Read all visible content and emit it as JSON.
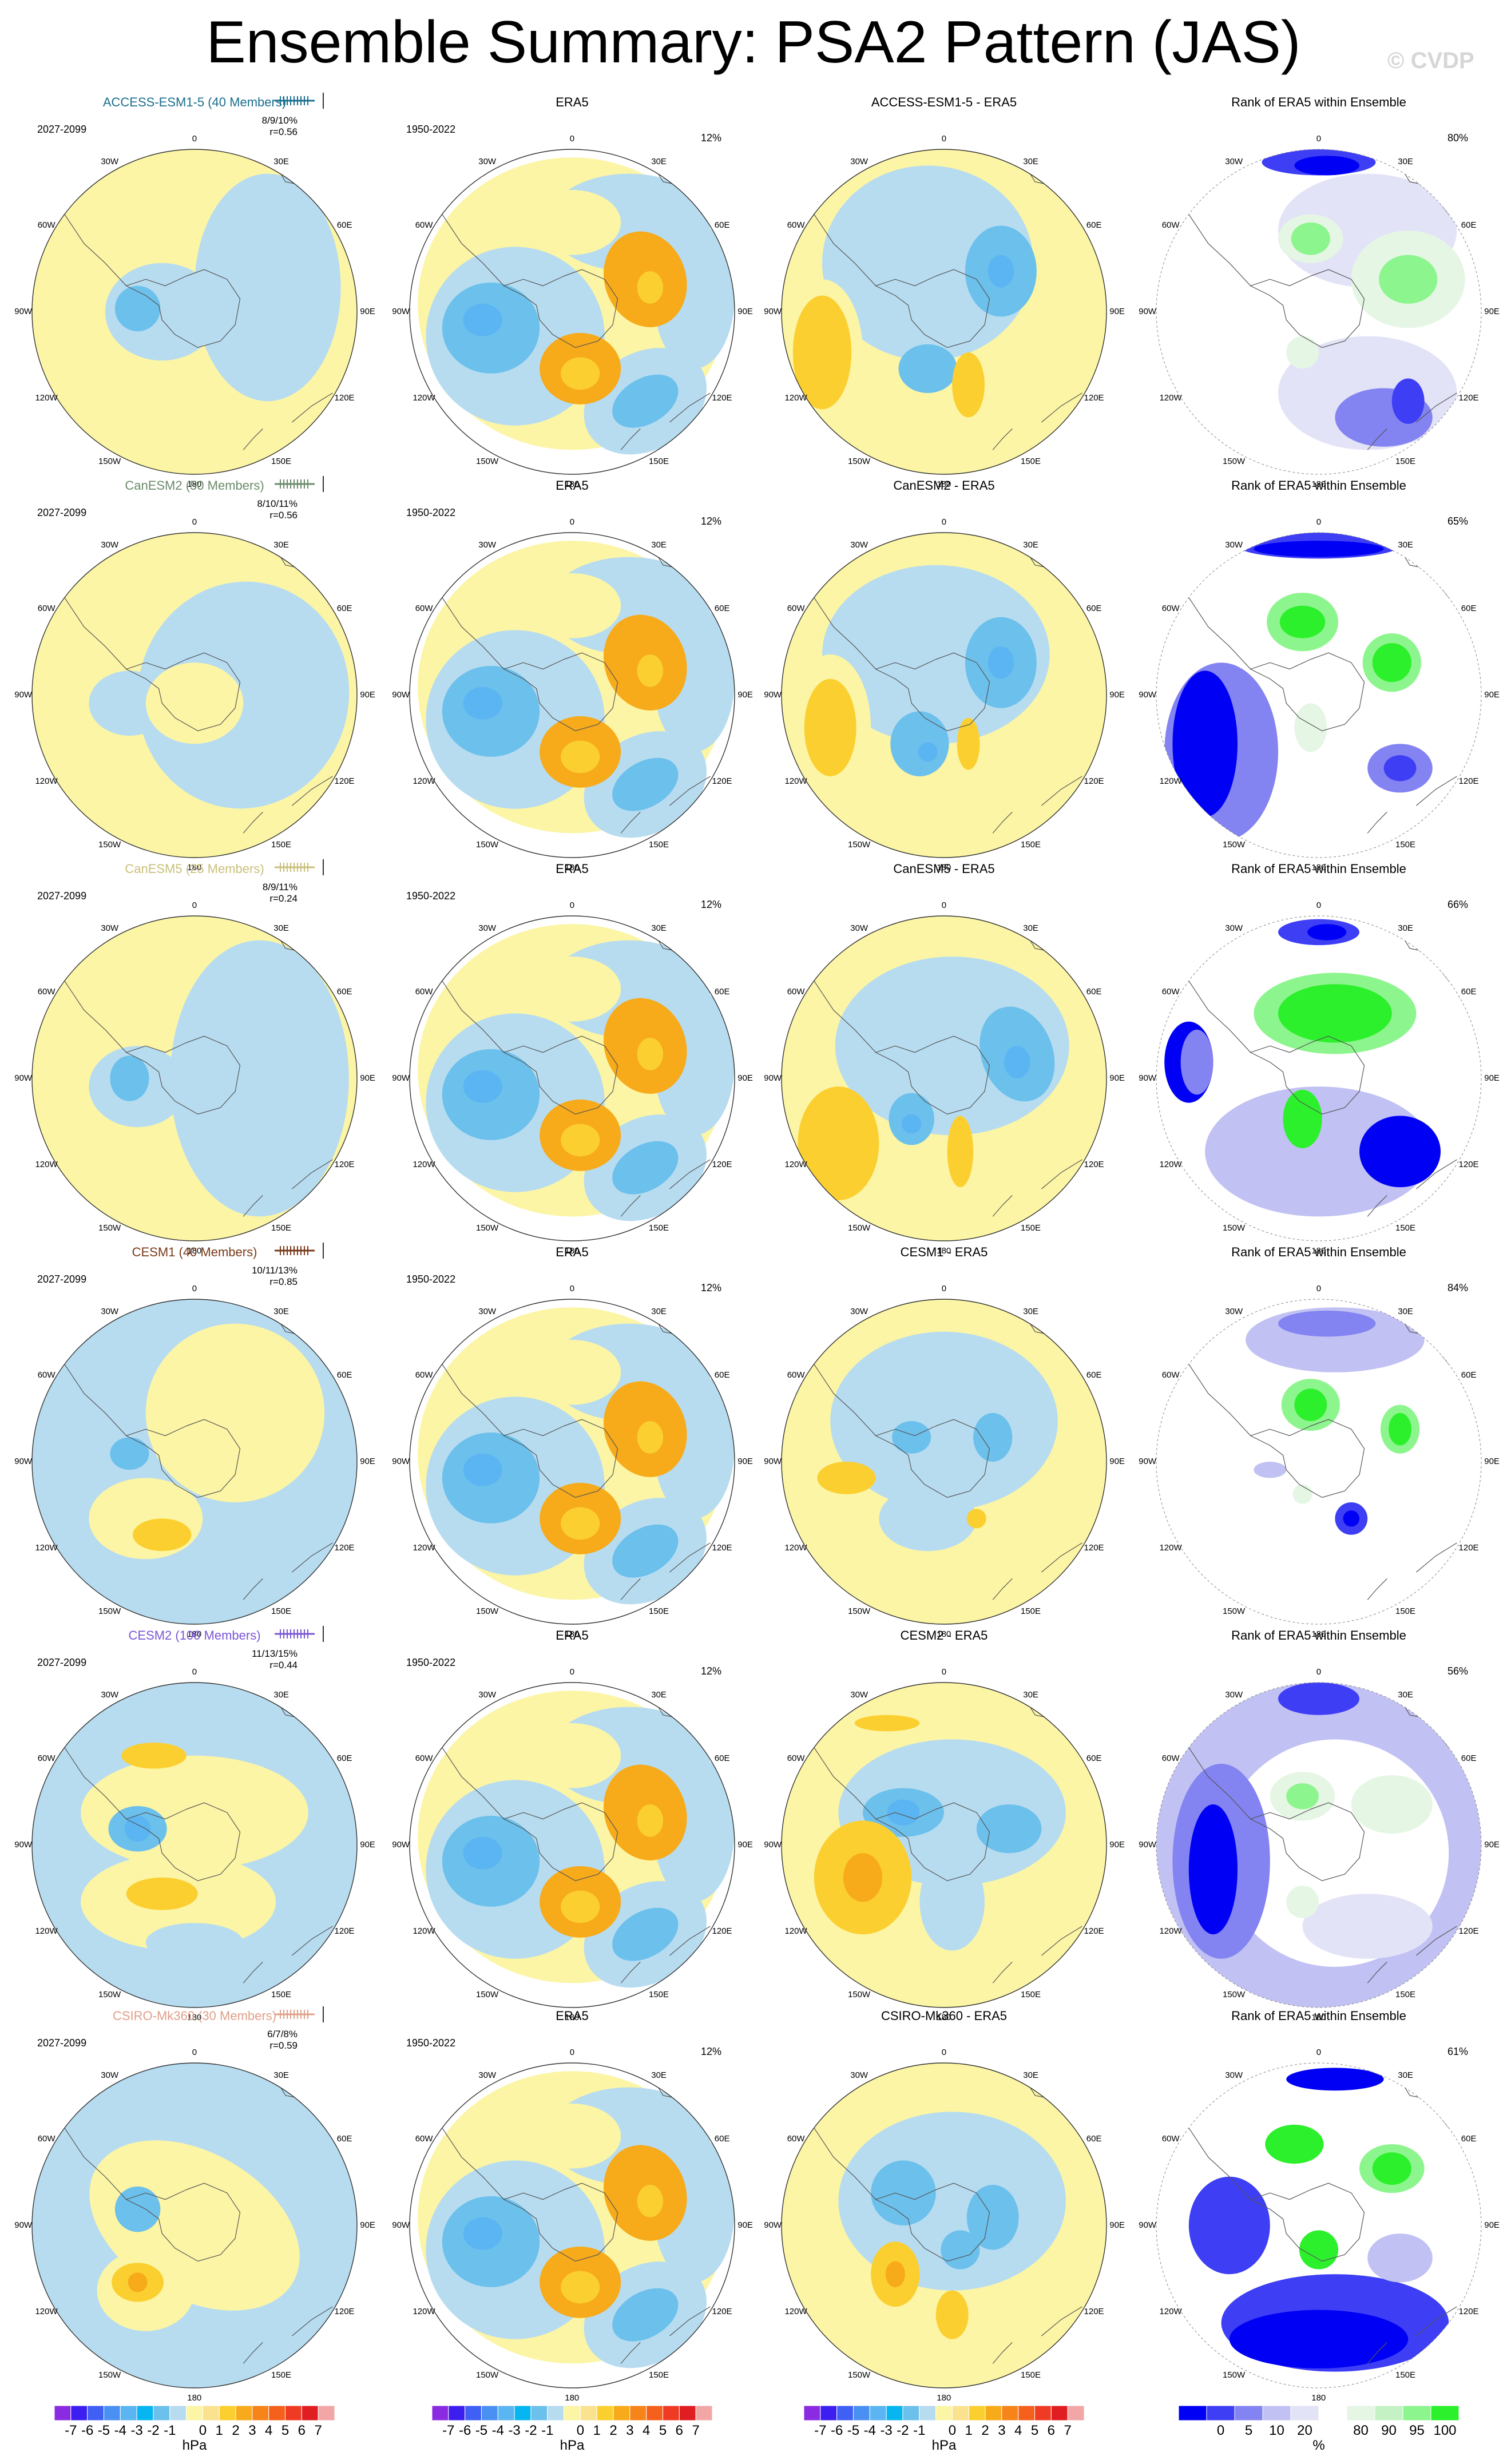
{
  "title": "Ensemble Summary: PSA2 Pattern (JAS)",
  "watermark": "© CVDP",
  "longitude_labels": [
    "0",
    "30E",
    "60E",
    "90E",
    "120E",
    "150E",
    "180",
    "150W",
    "120W",
    "90W",
    "60W",
    "30W"
  ],
  "colors": {
    "anomaly_levels": [
      "#8a2be2",
      "#3d1ef0",
      "#3f5ff5",
      "#4a8ff2",
      "#5ab5f2",
      "#07b6f0",
      "#6cc0ec",
      "#b7dcf0",
      "#fcf5a5",
      "#fbe28f",
      "#fbcf30",
      "#f7aa1a",
      "#f68418",
      "#f5611c",
      "#ef3b24",
      "#e01e22",
      "#f2a6a6"
    ],
    "rank_levels": [
      "#0000f5",
      "#3e3ef5",
      "#8383f1",
      "#c1c1f3",
      "#e3e3f7",
      "#ffffff",
      "#e5f6e5",
      "#c4f2c4",
      "#8df58d",
      "#2cf02c"
    ]
  },
  "rows": [
    {
      "model": "ACCESS-ESM1-5 (40 Members)",
      "model_color": "#1b6f8f",
      "period": "2027-2099",
      "stat1": "8/9/10%",
      "stat2": "r=0.56",
      "era_period": "1950-2022",
      "era_pct": "12%",
      "diff_title": "ACCESS-ESM1-5 - ERA5",
      "rank_title": "Rank of ERA5 within Ensemble",
      "rank_pct": "80%"
    },
    {
      "model": "CanESM2 (50 Members)",
      "model_color": "#6b8b6b",
      "period": "2027-2099",
      "stat1": "8/10/11%",
      "stat2": "r=0.56",
      "era_period": "1950-2022",
      "era_pct": "12%",
      "diff_title": "CanESM2 - ERA5",
      "rank_title": "Rank of ERA5 within Ensemble",
      "rank_pct": "65%"
    },
    {
      "model": "CanESM5 (25 Members)",
      "model_color": "#c9c07a",
      "period": "2027-2099",
      "stat1": "8/9/11%",
      "stat2": "r=0.24",
      "era_period": "1950-2022",
      "era_pct": "12%",
      "diff_title": "CanESM5 - ERA5",
      "rank_title": "Rank of ERA5 within Ensemble",
      "rank_pct": "66%"
    },
    {
      "model": "CESM1 (40 Members)",
      "model_color": "#7a3a1a",
      "period": "2027-2099",
      "stat1": "10/11/13%",
      "stat2": "r=0.85",
      "era_period": "1950-2022",
      "era_pct": "12%",
      "diff_title": "CESM1 - ERA5",
      "rank_title": "Rank of ERA5 within Ensemble",
      "rank_pct": "84%"
    },
    {
      "model": "CESM2 (100 Members)",
      "model_color": "#7b57d6",
      "period": "2027-2099",
      "stat1": "11/13/15%",
      "stat2": "r=0.44",
      "era_period": "1950-2022",
      "era_pct": "12%",
      "diff_title": "CESM2 - ERA5",
      "rank_title": "Rank of ERA5 within Ensemble",
      "rank_pct": "56%"
    },
    {
      "model": "CSIRO-Mk360 (30 Members)",
      "model_color": "#e0a08a",
      "period": "2027-2099",
      "stat1": "6/7/8%",
      "stat2": "r=0.59",
      "era_period": "1950-2022",
      "era_pct": "12%",
      "diff_title": "CSIRO-Mk360 - ERA5",
      "rank_title": "Rank of ERA5 within Ensemble",
      "rank_pct": "61%"
    }
  ],
  "colorbars": {
    "anomaly": {
      "labels": [
        "-7",
        "-6",
        "-5",
        "-4",
        "-3",
        "-2",
        "-1",
        "0",
        "1",
        "2",
        "3",
        "4",
        "5",
        "6",
        "7"
      ],
      "unit": "hPa"
    },
    "rank": {
      "labels": [
        "0",
        "5",
        "10",
        "20",
        "80",
        "90",
        "95",
        "100"
      ],
      "unit": "%"
    }
  },
  "chart_data": {
    "type": "heatmap",
    "title": "Ensemble Summary: PSA2 Pattern (JAS)",
    "description_of_panels": [
      "model ensemble-mean pattern",
      "ERA5",
      "model minus ERA5",
      "rank of ERA5 within ensemble"
    ],
    "anomaly_contour_levels_hPa": [
      -7,
      -6,
      -5,
      -4,
      -3,
      -2,
      -1,
      0,
      1,
      2,
      3,
      4,
      5,
      6,
      7
    ],
    "rank_levels_percent": [
      0,
      5,
      10,
      20,
      80,
      90,
      95,
      100
    ],
    "pattern_correlation": {
      "ACCESS-ESM1-5": 0.56,
      "CanESM2": 0.56,
      "CanESM5": 0.24,
      "CESM1": 0.85,
      "CESM2": 0.44,
      "CSIRO-Mk360": 0.59
    },
    "rank_percent": {
      "ACCESS-ESM1-5": 80,
      "CanESM2": 65,
      "CanESM5": 66,
      "CESM1": 84,
      "CESM2": 56,
      "CSIRO-Mk360": 61
    }
  }
}
